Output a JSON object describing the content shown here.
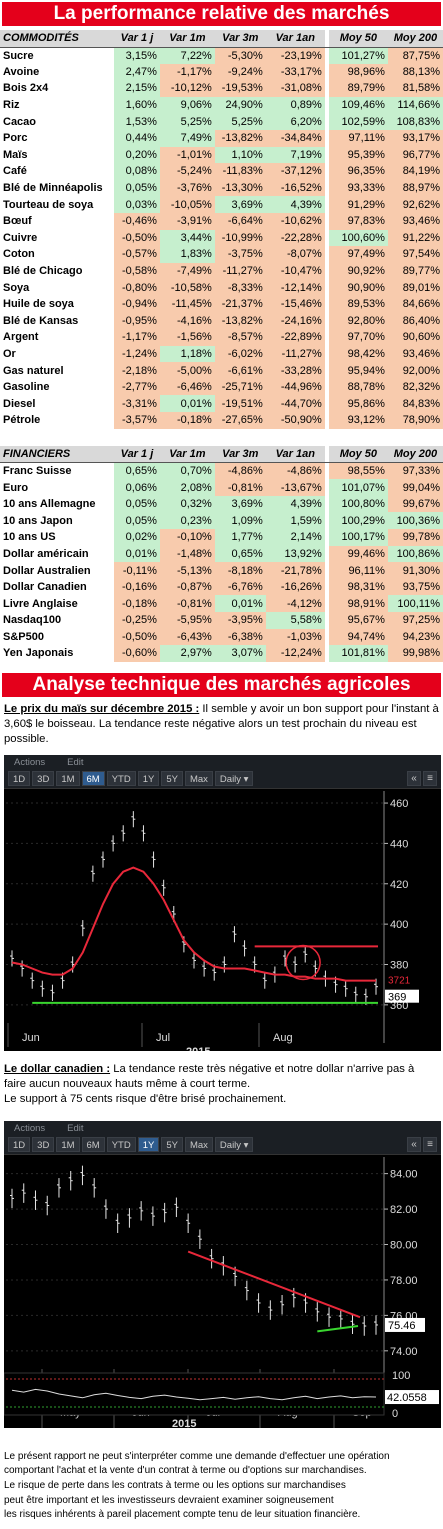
{
  "title": "La performance relative des marchés",
  "commodities": {
    "header": [
      "COMMODITÉS",
      "Var 1 j",
      "Var 1m",
      "Var 3m",
      "Var 1an",
      "Moy 50",
      "Moy 200"
    ],
    "rows": [
      [
        "Sucre",
        "3,15%",
        "7,22%",
        "-5,30%",
        "-23,19%",
        "101,27%",
        "87,75%"
      ],
      [
        "Avoine",
        "2,47%",
        "-1,17%",
        "-9,24%",
        "-33,17%",
        "98,96%",
        "88,13%"
      ],
      [
        "Bois 2x4",
        "2,15%",
        "-10,12%",
        "-19,53%",
        "-31,08%",
        "89,79%",
        "81,58%"
      ],
      [
        "Riz",
        "1,60%",
        "9,06%",
        "24,90%",
        "0,89%",
        "109,46%",
        "114,66%"
      ],
      [
        "Cacao",
        "1,53%",
        "5,25%",
        "5,25%",
        "6,20%",
        "102,59%",
        "108,83%"
      ],
      [
        "Porc",
        "0,44%",
        "7,49%",
        "-13,82%",
        "-34,84%",
        "97,11%",
        "93,17%"
      ],
      [
        "Maïs",
        "0,20%",
        "-1,01%",
        "1,10%",
        "7,19%",
        "95,39%",
        "96,77%"
      ],
      [
        "Café",
        "0,08%",
        "-5,24%",
        "-11,83%",
        "-37,12%",
        "96,35%",
        "84,19%"
      ],
      [
        "Blé de Minnéapolis",
        "0,05%",
        "-3,76%",
        "-13,30%",
        "-16,52%",
        "93,33%",
        "88,97%"
      ],
      [
        "Tourteau de soya",
        "0,03%",
        "-10,05%",
        "3,69%",
        "4,39%",
        "91,29%",
        "92,62%"
      ],
      [
        "Bœuf",
        "-0,46%",
        "-3,91%",
        "-6,64%",
        "-10,62%",
        "97,83%",
        "93,46%"
      ],
      [
        "Cuivre",
        "-0,50%",
        "3,44%",
        "-10,99%",
        "-22,28%",
        "100,60%",
        "91,22%"
      ],
      [
        "Coton",
        "-0,57%",
        "1,83%",
        "-3,75%",
        "-8,07%",
        "97,49%",
        "97,54%"
      ],
      [
        "Blé de Chicago",
        "-0,58%",
        "-7,49%",
        "-11,27%",
        "-10,47%",
        "90,92%",
        "89,77%"
      ],
      [
        "Soya",
        "-0,80%",
        "-10,58%",
        "-8,33%",
        "-12,14%",
        "90,90%",
        "89,01%"
      ],
      [
        "Huile de soya",
        "-0,94%",
        "-11,45%",
        "-21,37%",
        "-15,46%",
        "89,53%",
        "84,66%"
      ],
      [
        "Blé de Kansas",
        "-0,95%",
        "-4,16%",
        "-13,82%",
        "-24,16%",
        "92,80%",
        "86,40%"
      ],
      [
        "Argent",
        "-1,17%",
        "-1,56%",
        "-8,57%",
        "-22,89%",
        "97,70%",
        "90,60%"
      ],
      [
        "Or",
        "-1,24%",
        "1,18%",
        "-6,02%",
        "-11,27%",
        "98,42%",
        "93,46%"
      ],
      [
        "Gas naturel",
        "-2,18%",
        "-5,00%",
        "-6,61%",
        "-33,28%",
        "95,94%",
        "92,00%"
      ],
      [
        "Gasoline",
        "-2,77%",
        "-6,46%",
        "-25,71%",
        "-44,96%",
        "88,78%",
        "82,32%"
      ],
      [
        "Diesel",
        "-3,31%",
        "0,01%",
        "-19,51%",
        "-44,70%",
        "95,86%",
        "84,83%"
      ],
      [
        "Pétrole",
        "-3,57%",
        "-0,18%",
        "-27,65%",
        "-50,90%",
        "93,12%",
        "78,90%"
      ]
    ]
  },
  "financials": {
    "header": [
      "FINANCIERS",
      "Var 1 j",
      "Var 1m",
      "Var 3m",
      "Var 1an",
      "Moy 50",
      "Moy 200"
    ],
    "rows": [
      [
        "Franc Suisse",
        "0,65%",
        "0,70%",
        "-4,86%",
        "-4,86%",
        "98,55%",
        "97,33%"
      ],
      [
        "Euro",
        "0,06%",
        "2,08%",
        "-0,81%",
        "-13,67%",
        "101,07%",
        "99,04%"
      ],
      [
        "10 ans Allemagne",
        "0,05%",
        "0,32%",
        "3,69%",
        "4,39%",
        "100,80%",
        "99,67%"
      ],
      [
        "10 ans Japon",
        "0,05%",
        "0,23%",
        "1,09%",
        "1,59%",
        "100,29%",
        "100,36%"
      ],
      [
        "10 ans US",
        "0,02%",
        "-0,10%",
        "1,77%",
        "2,14%",
        "100,17%",
        "99,78%"
      ],
      [
        "Dollar américain",
        "0,01%",
        "-1,48%",
        "0,65%",
        "13,92%",
        "99,46%",
        "100,86%"
      ],
      [
        "Dollar Australien",
        "-0,11%",
        "-5,13%",
        "-8,18%",
        "-21,78%",
        "96,11%",
        "91,30%"
      ],
      [
        "Dollar Canadien",
        "-0,16%",
        "-0,87%",
        "-6,76%",
        "-16,26%",
        "98,31%",
        "93,75%"
      ],
      [
        "Livre Anglaise",
        "-0,18%",
        "-0,81%",
        "0,01%",
        "-4,12%",
        "98,91%",
        "100,11%"
      ],
      [
        "Nasdaq100",
        "-0,25%",
        "-5,95%",
        "-3,95%",
        "5,58%",
        "95,67%",
        "97,25%"
      ],
      [
        "S&P500",
        "-0,50%",
        "-6,43%",
        "-6,38%",
        "-1,03%",
        "94,74%",
        "94,23%"
      ],
      [
        "Yen Japonais",
        "-0,60%",
        "2,97%",
        "3,07%",
        "-12,24%",
        "101,81%",
        "99,98%"
      ]
    ]
  },
  "analysis_title": "Analyse technique des marchés agricoles",
  "corn_note": {
    "heading": "Le prix du maïs sur décembre 2015 :",
    "text": " Il semble y avoir un bon support pour l'instant à 3,60$ le boisseau. La tendance reste négative alors un test prochain du niveau est possible."
  },
  "cad_note": {
    "heading": "Le dollar canadien :",
    "text": " La tendance reste très négative et notre dollar n'arrive pas à faire aucun nouveaux hauts même à court terme.",
    "text2": "Le support à 75 cents risque d'être brisé prochainement."
  },
  "toolbar": {
    "actions": "Actions",
    "edit": "Edit",
    "ranges": [
      "1D",
      "3D",
      "1M",
      "6M",
      "YTD",
      "1Y",
      "5Y",
      "Max"
    ],
    "interval": "Daily ▾",
    "collapse": "«",
    "close": "≡"
  },
  "chart_data": [
    {
      "type": "line",
      "active_range": "6M",
      "x_ticks": [
        "Jun",
        "Jul",
        "Aug"
      ],
      "x_year": "2015",
      "y_ticks": [
        360,
        380,
        400,
        420,
        440,
        460
      ],
      "ylim": [
        352,
        463
      ],
      "price_labels": [
        "3721",
        "369"
      ],
      "series": [
        {
          "values": [
            383,
            378,
            372,
            368,
            366,
            372,
            380,
            398,
            425,
            432,
            440,
            445,
            452,
            445,
            432,
            418,
            405,
            390,
            382,
            378,
            376,
            380,
            395,
            388,
            380,
            372,
            375,
            383,
            380,
            385,
            378,
            373,
            370,
            368,
            365,
            364,
            369
          ]
        },
        {
          "values": [
            381,
            380,
            378,
            376,
            375,
            375,
            378,
            386,
            398,
            410,
            420,
            426,
            428,
            426,
            420,
            412,
            402,
            392,
            386,
            382,
            379,
            378,
            378,
            378,
            377,
            376,
            375,
            375,
            374,
            374,
            373,
            373,
            373,
            372,
            372,
            372,
            372
          ]
        }
      ],
      "lines": {
        "resistance": 389,
        "support": 361
      },
      "colors": {
        "price": "#e6e6e6",
        "average": "#e8283a",
        "resistance": "#e8283a",
        "support": "#39d62f"
      }
    },
    {
      "type": "line",
      "active_range": "1Y",
      "x_ticks": [
        "May",
        "Jun",
        "Jul",
        "Aug",
        "Sep"
      ],
      "x_year": "2015",
      "y_ticks": [
        74.0,
        76.0,
        78.0,
        80.0,
        82.0,
        84.0
      ],
      "ylim": [
        73.2,
        84.6
      ],
      "price_labels": [
        "75.46"
      ],
      "indicator": {
        "ticks": [
          0,
          100
        ],
        "value_label": "42.0558"
      },
      "series": [
        {
          "values": [
            82.6,
            82.9,
            82.5,
            82.2,
            83.2,
            83.6,
            83.9,
            83.2,
            82.0,
            81.2,
            81.5,
            81.9,
            81.6,
            81.8,
            82.1,
            81.2,
            80.3,
            79.2,
            78.8,
            78.2,
            77.4,
            76.7,
            76.3,
            76.6,
            77.0,
            76.7,
            76.2,
            75.9,
            75.8,
            75.5,
            75.4,
            75.46
          ]
        }
      ],
      "lines": {
        "trend_start": 79.6,
        "trend_end": 75.9,
        "support_start": 75.1,
        "support_end": 75.4
      },
      "colors": {
        "price": "#e6e6e6",
        "trend": "#e8283a",
        "support": "#39d62f"
      }
    }
  ],
  "disclaimer": [
    "Le présent rapport ne peut s'interpréter comme une demande d'effectuer une opération",
    "comportant l'achat et la vente d'un contrat à terme ou d'options sur marchandises.",
    "Le risque de perte dans les contrats à terme ou les options sur marchandises",
    "peut être important et les investisseurs devraient examiner soigneusement",
    "les risques inhérents à pareil placement compte tenu de leur situation financière."
  ],
  "colors": {
    "banner": "#e4001b",
    "positive": "#c6efce",
    "negative": "#f8cbad"
  }
}
